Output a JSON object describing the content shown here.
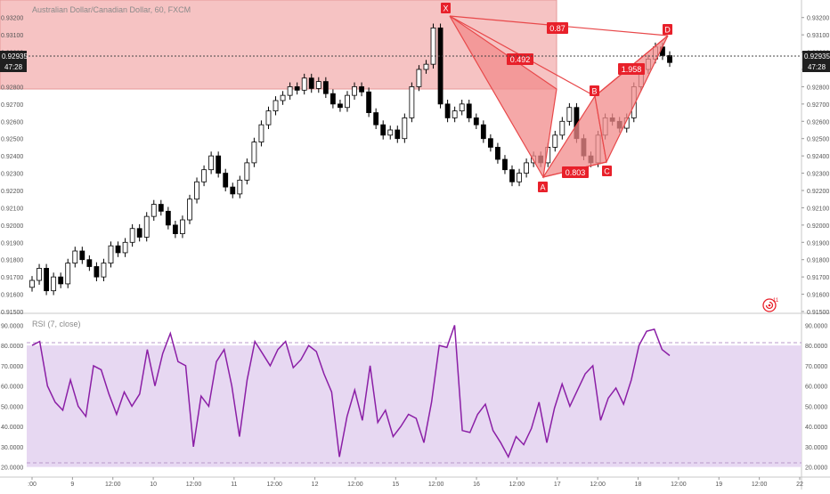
{
  "header": {
    "symbol_title": "Australian Dollar/Canadian Dollar, 60, FXCM"
  },
  "price_axis": {
    "ticks": [
      "0.93200",
      "0.93100",
      "0.93000",
      "0.92900",
      "0.92800",
      "0.92700",
      "0.92600",
      "0.92500",
      "0.92400",
      "0.92300",
      "0.92200",
      "0.92100",
      "0.92000",
      "0.91900",
      "0.91800",
      "0.91700",
      "0.91600",
      "0.91500"
    ],
    "current_price_label": "0.92935",
    "countdown_label": "47:28"
  },
  "time_axis": {
    "labels": [
      ":00",
      "9",
      "12:00",
      "10",
      "12:00",
      "11",
      "12:00",
      "12",
      "12:00",
      "15",
      "12:00",
      "16",
      "12:00",
      "17",
      "12:00",
      "18",
      "12:00",
      "19",
      "12:00",
      "22"
    ]
  },
  "pattern": {
    "points": [
      "X",
      "A",
      "B",
      "C",
      "D"
    ],
    "ratios": [
      "0.87",
      "0.492",
      "1.958",
      "0.803"
    ]
  },
  "rsi": {
    "title": "RSI (7, close)",
    "ticks": [
      "90.0000",
      "80.0000",
      "70.0000",
      "60.0000",
      "50.0000",
      "40.0000",
      "30.0000",
      "20.0000"
    ],
    "upper_band": 80,
    "lower_band": 20
  },
  "colors": {
    "up_candle": "#ffffff",
    "down_candle": "#000000",
    "pattern_fill": "#f28b8b",
    "pattern_line": "#e8484a",
    "zone_fill": "#f4b9b9",
    "rsi_line": "#8b1fa6",
    "rsi_band_fill": "#e7d8f2",
    "label_bg": "#e8202a",
    "current_price_bg": "#1f1f1f"
  },
  "chart_data": {
    "type": "candlestick",
    "title": "Australian Dollar/Canadian Dollar, 60, FXCM",
    "ylim": [
      0.915,
      0.9325
    ],
    "pattern_points": [
      {
        "label": "X",
        "price": 0.9315
      },
      {
        "label": "A",
        "price": 0.9223
      },
      {
        "label": "B",
        "price": 0.9268
      },
      {
        "label": "C",
        "price": 0.9235
      },
      {
        "label": "D",
        "price": 0.9304
      }
    ],
    "close_series": [
      0.9168,
      0.9175,
      0.9162,
      0.917,
      0.9166,
      0.9178,
      0.9185,
      0.918,
      0.9176,
      0.917,
      0.9178,
      0.9188,
      0.9184,
      0.919,
      0.9198,
      0.9193,
      0.9205,
      0.9212,
      0.9208,
      0.92,
      0.9195,
      0.9203,
      0.9215,
      0.9225,
      0.9232,
      0.924,
      0.923,
      0.9222,
      0.9218,
      0.9226,
      0.9236,
      0.9248,
      0.9258,
      0.9266,
      0.9272,
      0.9275,
      0.928,
      0.9278,
      0.9285,
      0.9279,
      0.9283,
      0.9276,
      0.927,
      0.9268,
      0.9275,
      0.928,
      0.9277,
      0.9265,
      0.9258,
      0.9252,
      0.9255,
      0.925,
      0.9262,
      0.928,
      0.929,
      0.9293,
      0.9314,
      0.927,
      0.9262,
      0.9266,
      0.927,
      0.9262,
      0.9258,
      0.925,
      0.9245,
      0.9238,
      0.9232,
      0.9225,
      0.923,
      0.9236,
      0.924,
      0.9236,
      0.9245,
      0.9252,
      0.926,
      0.9268,
      0.925,
      0.924,
      0.9236,
      0.9252,
      0.9262,
      0.926,
      0.9256,
      0.9262,
      0.928,
      0.929,
      0.9296,
      0.9303,
      0.9298,
      0.9294
    ],
    "rsi_values": [
      80,
      82,
      60,
      52,
      48,
      63,
      50,
      45,
      70,
      68,
      56,
      46,
      57,
      50,
      56,
      78,
      60,
      76,
      86,
      72,
      70,
      30,
      55,
      50,
      72,
      78,
      60,
      35,
      63,
      82,
      76,
      70,
      78,
      82,
      69,
      73,
      80,
      77,
      66,
      57,
      25,
      45,
      58,
      43,
      70,
      42,
      48,
      35,
      40,
      46,
      44,
      32,
      52,
      80,
      79,
      90,
      38,
      37,
      46,
      51,
      38,
      32,
      25,
      35,
      31,
      39,
      52,
      32,
      49,
      61,
      50,
      58,
      66,
      70,
      43,
      54,
      59,
      51,
      63,
      80,
      87,
      88,
      78,
      75
    ]
  }
}
